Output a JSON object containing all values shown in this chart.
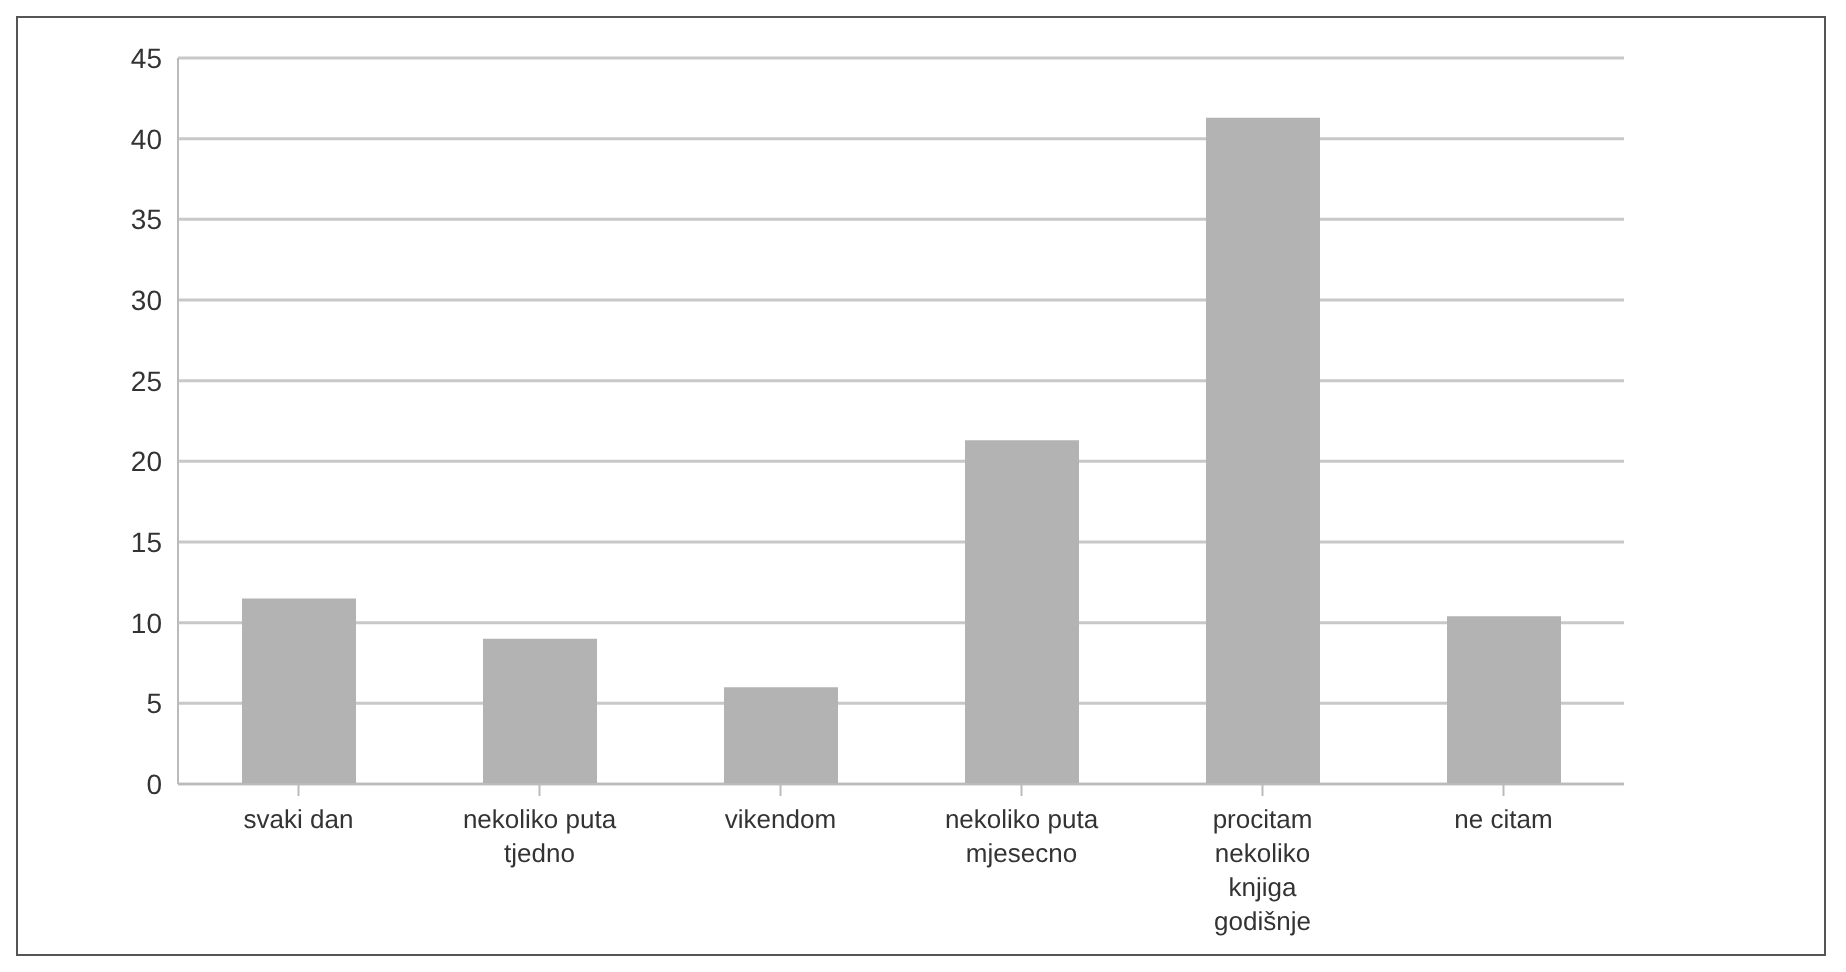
{
  "chart_data": {
    "type": "bar",
    "categories": [
      "svaki dan",
      "nekoliko puta tjedno",
      "vikendom",
      "nekoliko puta mjesecno",
      "procitam nekoliko knjiga godišnje",
      "ne citam"
    ],
    "values": [
      11.5,
      9,
      6,
      21.3,
      41.3,
      10.4
    ],
    "color": "#b3b3b3",
    "ylim": [
      0,
      45
    ],
    "yticks": [
      0,
      5,
      10,
      15,
      20,
      25,
      30,
      35,
      40,
      45
    ],
    "grid": "y"
  }
}
